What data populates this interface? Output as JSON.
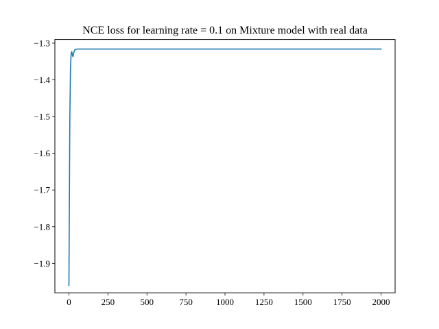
{
  "chart_data": {
    "type": "line",
    "title": "NCE loss for learning rate = 0.1 on Mixture model with real data",
    "xlabel": "",
    "ylabel": "",
    "xlim": [
      -90,
      2090
    ],
    "ylim": [
      -1.98,
      -1.29
    ],
    "xticks": [
      0,
      250,
      500,
      750,
      1000,
      1250,
      1500,
      1750,
      2000
    ],
    "xtick_labels": [
      "0",
      "250",
      "500",
      "750",
      "1000",
      "1250",
      "1500",
      "1750",
      "2000"
    ],
    "yticks": [
      -1.9,
      -1.8,
      -1.7,
      -1.6,
      -1.5,
      -1.4,
      -1.3
    ],
    "ytick_labels": [
      "−1.9",
      "−1.8",
      "−1.7",
      "−1.6",
      "−1.5",
      "−1.4",
      "−1.3"
    ],
    "grid": false,
    "series": [
      {
        "color": "#1f77b4",
        "x": [
          0,
          3,
          6,
          10,
          14,
          18,
          22,
          26,
          30,
          34,
          38,
          45,
          55,
          70,
          100,
          200,
          500,
          1000,
          1500,
          2000
        ],
        "y": [
          -1.96,
          -1.72,
          -1.5,
          -1.37,
          -1.33,
          -1.323,
          -1.332,
          -1.337,
          -1.328,
          -1.322,
          -1.318,
          -1.317,
          -1.316,
          -1.316,
          -1.316,
          -1.316,
          -1.316,
          -1.316,
          -1.316,
          -1.316
        ]
      }
    ]
  }
}
